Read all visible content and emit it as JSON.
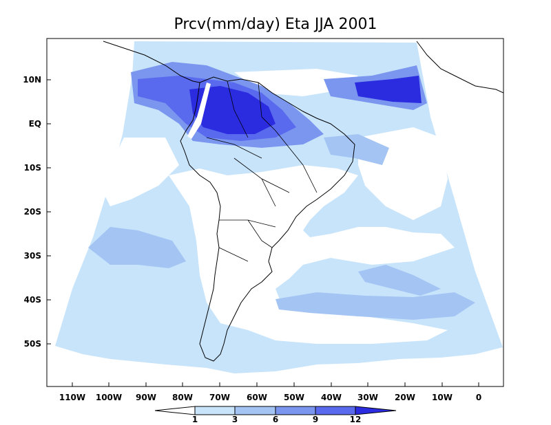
{
  "title": "Prcv(mm/day) Eta JJA 2001",
  "x_ticks": [
    "110W",
    "100W",
    "90W",
    "80W",
    "70W",
    "60W",
    "50W",
    "40W",
    "30W",
    "20W",
    "10W",
    "0"
  ],
  "y_ticks": [
    "10N",
    "EQ",
    "10S",
    "20S",
    "30S",
    "40S",
    "50S"
  ],
  "colorbar": {
    "labels": [
      "1",
      "3",
      "6",
      "9",
      "12"
    ],
    "colors": [
      "#ffffff",
      "#c8e4fb",
      "#a4c4f4",
      "#7a96ef",
      "#5a6aee",
      "#2b2bdf"
    ]
  }
}
